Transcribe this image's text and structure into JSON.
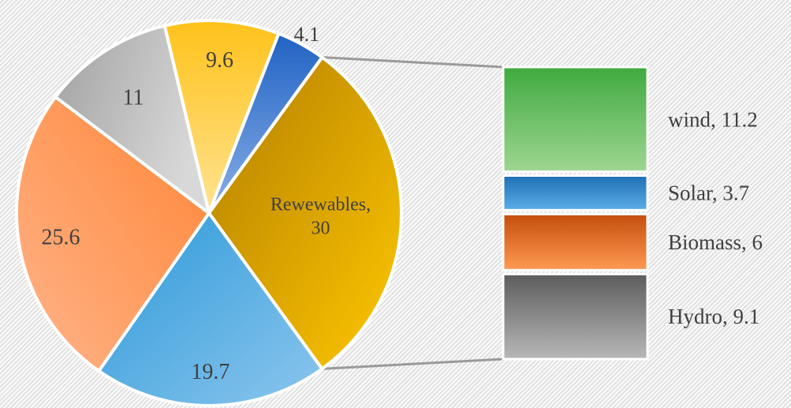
{
  "chart_data": {
    "type": "pie",
    "subtype": "bar-of-pie",
    "title": "",
    "slices": [
      {
        "label": "Rewewables, 30",
        "value": 30,
        "color": "#f2b600",
        "gradient": [
          "#b27d00",
          "#ffc800"
        ]
      },
      {
        "label": "19.7",
        "value": 19.7,
        "color": "#4ea3dd",
        "gradient": [
          "#2c99d8",
          "#8cc6ee"
        ]
      },
      {
        "label": "25.6",
        "value": 25.6,
        "color": "#f7904a",
        "gradient": [
          "#ff8536",
          "#ffb48a"
        ]
      },
      {
        "label": "11",
        "value": 11,
        "color": "#a6a6a6",
        "gradient": [
          "#a1a1a1",
          "#d8d8d8"
        ]
      },
      {
        "label": "9.6",
        "value": 9.6,
        "color": "#ffcc40",
        "gradient": [
          "#ffc21a",
          "#ffe392"
        ]
      },
      {
        "label": "4.1",
        "value": 4.1,
        "color": "#2f6fca",
        "gradient": [
          "#2063c4",
          "#8aaee6"
        ]
      }
    ],
    "breakdown": [
      {
        "label": "wind, 11.2",
        "value": 11.2,
        "color": "#62bd5a",
        "gradient": [
          "#3faa3f",
          "#9ed691"
        ]
      },
      {
        "label": "Solar, 3.7",
        "value": 3.7,
        "color": "#2c7fc2",
        "gradient": [
          "#1f6eb4",
          "#5aaee8"
        ]
      },
      {
        "label": "Biomass, 6",
        "value": 6,
        "color": "#f07c30",
        "gradient": [
          "#c44d0c",
          "#ff9a52"
        ]
      },
      {
        "label": "Hydro, 9.1",
        "value": 9.1,
        "color": "#8a8a8a",
        "gradient": [
          "#5c5c5c",
          "#b8b8b8"
        ]
      }
    ]
  }
}
